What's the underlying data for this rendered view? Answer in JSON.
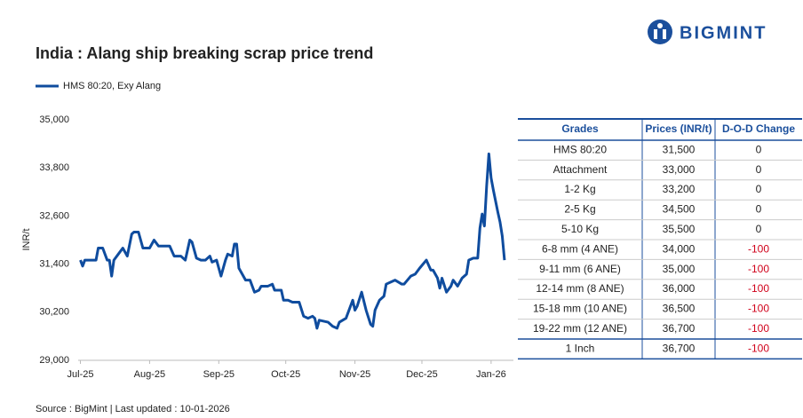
{
  "header": {
    "logo": "BIGMINT",
    "source": "Source : BigMint | Last updated : 10-01-2026"
  },
  "chart_data": {
    "type": "line",
    "title": "India : Alang ship breaking scrap price trend",
    "y_label": "INR/t",
    "x": [
      0,
      1,
      2,
      3,
      7,
      8,
      10,
      12,
      13,
      14,
      15,
      17,
      19,
      21,
      23,
      24,
      26,
      28,
      31,
      33,
      35,
      40,
      42,
      45,
      47,
      49,
      50,
      52,
      54,
      56,
      58,
      59,
      61,
      63,
      65,
      66,
      68,
      69,
      70,
      71,
      74,
      76,
      78,
      80,
      81,
      84,
      86,
      87,
      90,
      91,
      93,
      95,
      98,
      100,
      102,
      104,
      105,
      106,
      107,
      111,
      113,
      115,
      116,
      119,
      122,
      123,
      124,
      126,
      128,
      130,
      131,
      132,
      134,
      136,
      137,
      139,
      141,
      144,
      145,
      148,
      150,
      152,
      155,
      157,
      158,
      160,
      161,
      162,
      164,
      166,
      167,
      169,
      171,
      173,
      174,
      176,
      178,
      179,
      180,
      181,
      182,
      183,
      184,
      185,
      187,
      188,
      189,
      190
    ],
    "series": [
      {
        "name": "HMS 80:20, Exy Alang",
        "color": "#0f4c9e",
        "values": [
          31500,
          31350,
          31500,
          31500,
          31500,
          31800,
          31800,
          31500,
          31500,
          31100,
          31500,
          31650,
          31800,
          31600,
          32150,
          32200,
          32200,
          31800,
          31800,
          32000,
          31850,
          31850,
          31600,
          31600,
          31500,
          32000,
          31950,
          31550,
          31500,
          31500,
          31600,
          31450,
          31500,
          31100,
          31500,
          31650,
          31600,
          31900,
          31900,
          31300,
          31000,
          31000,
          30700,
          30750,
          30850,
          30850,
          30900,
          30750,
          30750,
          30500,
          30500,
          30450,
          30450,
          30100,
          30050,
          30100,
          30050,
          29800,
          30000,
          29950,
          29850,
          29800,
          29950,
          30050,
          30500,
          30250,
          30350,
          30700,
          30250,
          29900,
          29850,
          30250,
          30500,
          30600,
          30900,
          30950,
          31000,
          30900,
          30900,
          31100,
          31150,
          31300,
          31500,
          31250,
          31250,
          31050,
          30800,
          31050,
          30700,
          30850,
          31000,
          30850,
          31050,
          31150,
          31500,
          31550,
          31550,
          32300,
          32650,
          32350,
          33350,
          34150,
          33550,
          33250,
          32700,
          32450,
          32100,
          31500
        ]
      }
    ],
    "xlim": [
      -1,
      194
    ],
    "xticks": [
      {
        "value": 0,
        "label": "Jul-25"
      },
      {
        "value": 31,
        "label": "Aug-25"
      },
      {
        "value": 62,
        "label": "Sep-25"
      },
      {
        "value": 92,
        "label": "Oct-25"
      },
      {
        "value": 123,
        "label": "Nov-25"
      },
      {
        "value": 153,
        "label": "Dec-25"
      },
      {
        "value": 184,
        "label": "Jan-26"
      }
    ],
    "ylim": [
      29000,
      35000
    ],
    "yticks": [
      {
        "value": 29000,
        "label": "29,000"
      },
      {
        "value": 30200,
        "label": "30,200"
      },
      {
        "value": 31400,
        "label": "31,400"
      },
      {
        "value": 32600,
        "label": "32,600"
      },
      {
        "value": 33800,
        "label": "33,800"
      },
      {
        "value": 35000,
        "label": "35,000"
      }
    ],
    "legend": "top-left"
  },
  "table": {
    "columns": [
      "Grades",
      "Prices (INR/t)",
      "D-O-D Change"
    ],
    "rows": [
      [
        "HMS 80:20",
        "31,500",
        "0"
      ],
      [
        "Attachment",
        "33,000",
        "0"
      ],
      [
        "1-2 Kg",
        "33,200",
        "0"
      ],
      [
        "2-5 Kg",
        "34,500",
        "0"
      ],
      [
        "5-10 Kg",
        "35,500",
        "0"
      ],
      [
        "6-8 mm (4 ANE)",
        "34,000",
        "-100"
      ],
      [
        "9-11 mm (6 ANE)",
        "35,000",
        "-100"
      ],
      [
        "12-14 mm (8 ANE)",
        "36,000",
        "-100"
      ],
      [
        "15-18 mm (10 ANE)",
        "36,500",
        "-100"
      ],
      [
        "19-22 mm (12 ANE)",
        "36,700",
        "-100"
      ],
      [
        "1 Inch",
        "36,700",
        "-100"
      ]
    ]
  }
}
